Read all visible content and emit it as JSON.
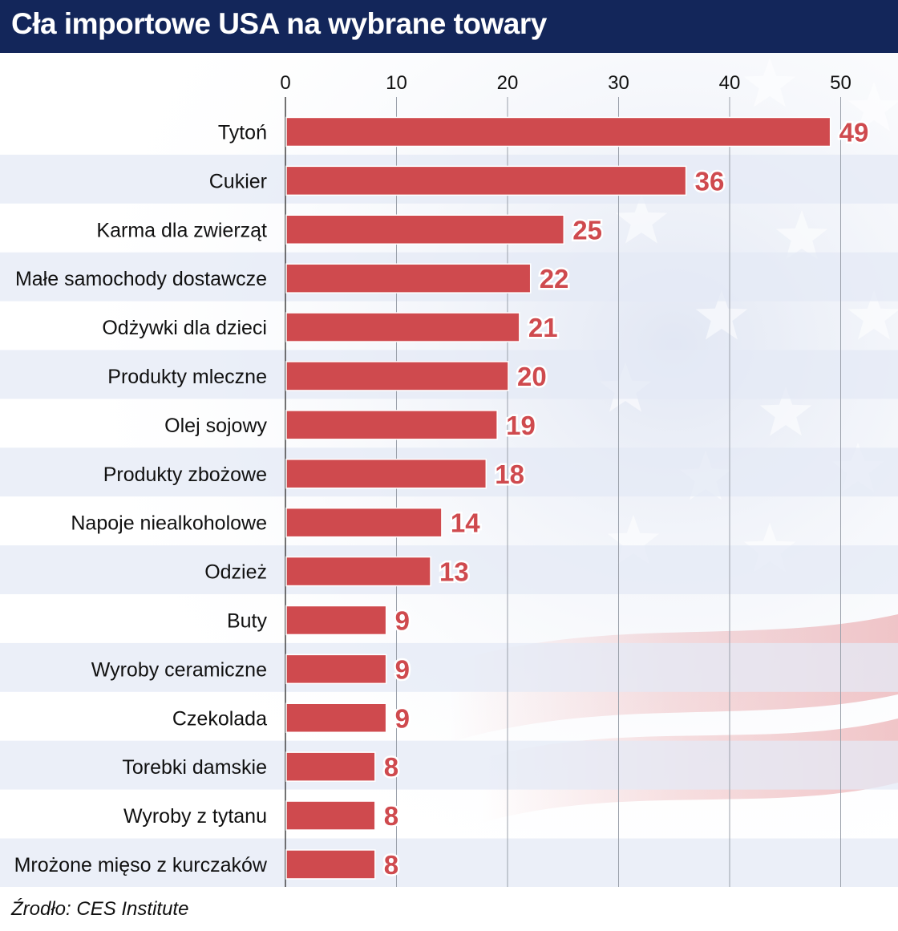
{
  "header": {
    "title": "Cła importowe USA na wybrane towary"
  },
  "source": "Źrodło: CES Institute",
  "colors": {
    "bar": "#cf4a4e",
    "header": "#13265a",
    "stripe": "#e4eaf6",
    "label_outline": "#8a2a2e"
  },
  "chart_data": {
    "type": "bar",
    "orientation": "horizontal",
    "title": "Cła importowe USA na wybrane towary",
    "xlabel": "",
    "ylabel": "",
    "xlim": [
      0,
      55
    ],
    "ticks": [
      0,
      10,
      20,
      30,
      40,
      50
    ],
    "tick_labels": [
      "0",
      "10",
      "20",
      "30",
      "40",
      "50"
    ],
    "grid": true,
    "categories": [
      "Tytoń",
      "Cukier",
      "Karma dla zwierząt",
      "Małe samochody dostawcze",
      "Odżywki dla dzieci",
      "Produkty mleczne",
      "Olej sojowy",
      "Produkty zbożowe",
      "Napoje niealkoholowe",
      "Odzież",
      "Buty",
      "Wyroby ceramiczne",
      "Czekolada",
      "Torebki damskie",
      "Wyroby z tytanu",
      "Mrożone mięso z kurczaków"
    ],
    "values": [
      49,
      36,
      25,
      22,
      21,
      20,
      19,
      18,
      14,
      13,
      9,
      9,
      9,
      8,
      8,
      8
    ],
    "value_labels": [
      "49",
      "36",
      "25",
      "22",
      "21",
      "20",
      "19",
      "18",
      "14",
      "13",
      "9",
      "9",
      "9",
      "8",
      "8",
      "8"
    ]
  }
}
